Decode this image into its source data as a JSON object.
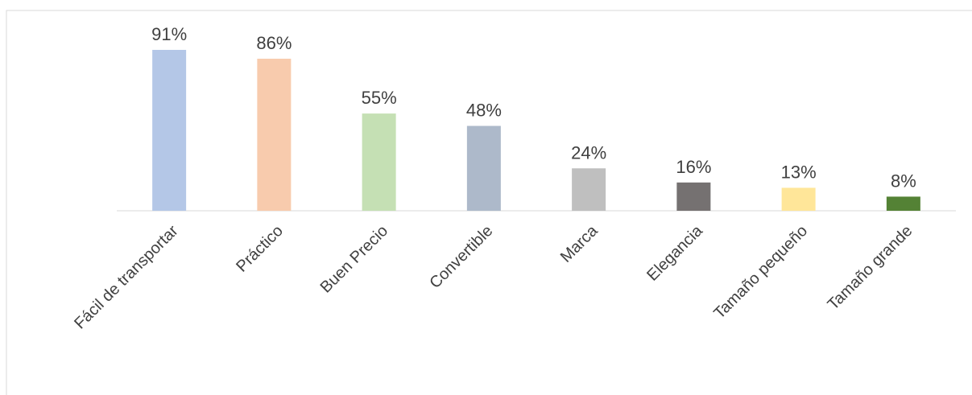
{
  "chart_data": {
    "type": "bar",
    "categories": [
      "Fácil de transportar",
      "Práctico",
      "Buen Precio",
      "Convertible",
      "Marca",
      "Elegancia",
      "Tamaño pequeño",
      "Tamaño grande"
    ],
    "values": [
      91,
      86,
      55,
      48,
      24,
      16,
      13,
      8
    ],
    "value_labels": [
      "91%",
      "86%",
      "55%",
      "48%",
      "24%",
      "16%",
      "13%",
      "8%"
    ],
    "colors": [
      "#b4c7e7",
      "#f8cbad",
      "#c5e0b4",
      "#adb9ca",
      "#bfbfbf",
      "#757171",
      "#ffe699",
      "#548235"
    ]
  }
}
